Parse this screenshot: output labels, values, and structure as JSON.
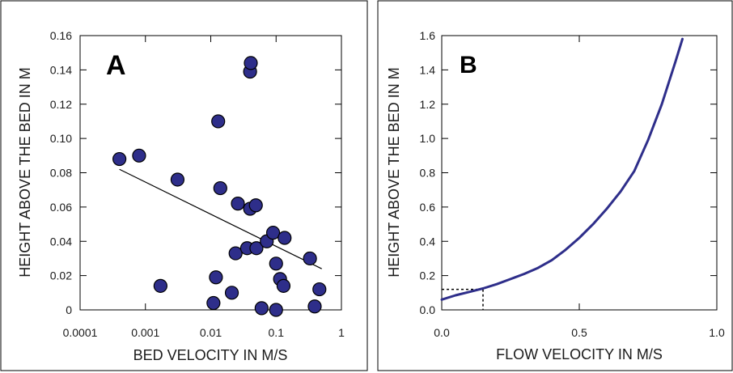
{
  "chart_data": [
    {
      "type": "scatter",
      "title": "A",
      "xlabel": "BED VELOCITY IN M/S",
      "ylabel": "HEIGHT ABOVE THE BED IN M",
      "xscale": "log",
      "xlim": [
        0.0001,
        1
      ],
      "ylim": [
        0,
        0.16
      ],
      "xticks": [
        "0.0001",
        "0.001",
        "0.01",
        "0.1",
        "1"
      ],
      "yticks": [
        "0",
        "0.02",
        "0.04",
        "0.06",
        "0.08",
        "0.10",
        "0.12",
        "0.14",
        "0.16"
      ],
      "marker_color": "#2e2e8a",
      "grid": false,
      "points": [
        {
          "x": 0.0004,
          "y": 0.088
        },
        {
          "x": 0.0008,
          "y": 0.09
        },
        {
          "x": 0.0017,
          "y": 0.014
        },
        {
          "x": 0.0031,
          "y": 0.076
        },
        {
          "x": 0.011,
          "y": 0.004
        },
        {
          "x": 0.012,
          "y": 0.019
        },
        {
          "x": 0.013,
          "y": 0.11
        },
        {
          "x": 0.014,
          "y": 0.071
        },
        {
          "x": 0.021,
          "y": 0.01
        },
        {
          "x": 0.024,
          "y": 0.033
        },
        {
          "x": 0.026,
          "y": 0.062
        },
        {
          "x": 0.036,
          "y": 0.036
        },
        {
          "x": 0.04,
          "y": 0.139
        },
        {
          "x": 0.041,
          "y": 0.144
        },
        {
          "x": 0.04,
          "y": 0.059
        },
        {
          "x": 0.049,
          "y": 0.061
        },
        {
          "x": 0.05,
          "y": 0.036
        },
        {
          "x": 0.06,
          "y": 0.001
        },
        {
          "x": 0.072,
          "y": 0.04
        },
        {
          "x": 0.09,
          "y": 0.045
        },
        {
          "x": 0.1,
          "y": 0.027
        },
        {
          "x": 0.1,
          "y": 0.0
        },
        {
          "x": 0.115,
          "y": 0.018
        },
        {
          "x": 0.13,
          "y": 0.014
        },
        {
          "x": 0.135,
          "y": 0.042
        },
        {
          "x": 0.33,
          "y": 0.03
        },
        {
          "x": 0.39,
          "y": 0.002
        },
        {
          "x": 0.46,
          "y": 0.012
        }
      ],
      "trendline": [
        {
          "x": 0.0004,
          "y": 0.082
        },
        {
          "x": 0.5,
          "y": 0.024
        }
      ]
    },
    {
      "type": "line",
      "title": "B",
      "xlabel": "FLOW VELOCITY IN M/S",
      "ylabel": "HEIGHT ABOVE THE BED IN M",
      "xlim": [
        0,
        1.0
      ],
      "ylim": [
        0,
        1.6
      ],
      "xticks": [
        "0.0",
        "0.5",
        "1.0"
      ],
      "yticks": [
        "0.0",
        "0.2",
        "0.4",
        "0.6",
        "0.8",
        "1.0",
        "1.2",
        "1.4",
        "1.6"
      ],
      "line_color": "#2e2e8a",
      "grid": false,
      "series": [
        {
          "x": [
            0.0,
            0.05,
            0.1,
            0.15,
            0.2,
            0.25,
            0.3,
            0.35,
            0.4,
            0.45,
            0.5,
            0.55,
            0.6,
            0.65,
            0.7,
            0.75,
            0.8,
            0.85,
            0.875
          ],
          "y": [
            0.06,
            0.085,
            0.105,
            0.125,
            0.15,
            0.18,
            0.21,
            0.245,
            0.29,
            0.35,
            0.42,
            0.5,
            0.59,
            0.69,
            0.81,
            0.99,
            1.2,
            1.45,
            1.58
          ]
        }
      ],
      "reference_lines": [
        {
          "x": 0.15,
          "y": 0.12,
          "style": "dashed"
        }
      ]
    }
  ]
}
